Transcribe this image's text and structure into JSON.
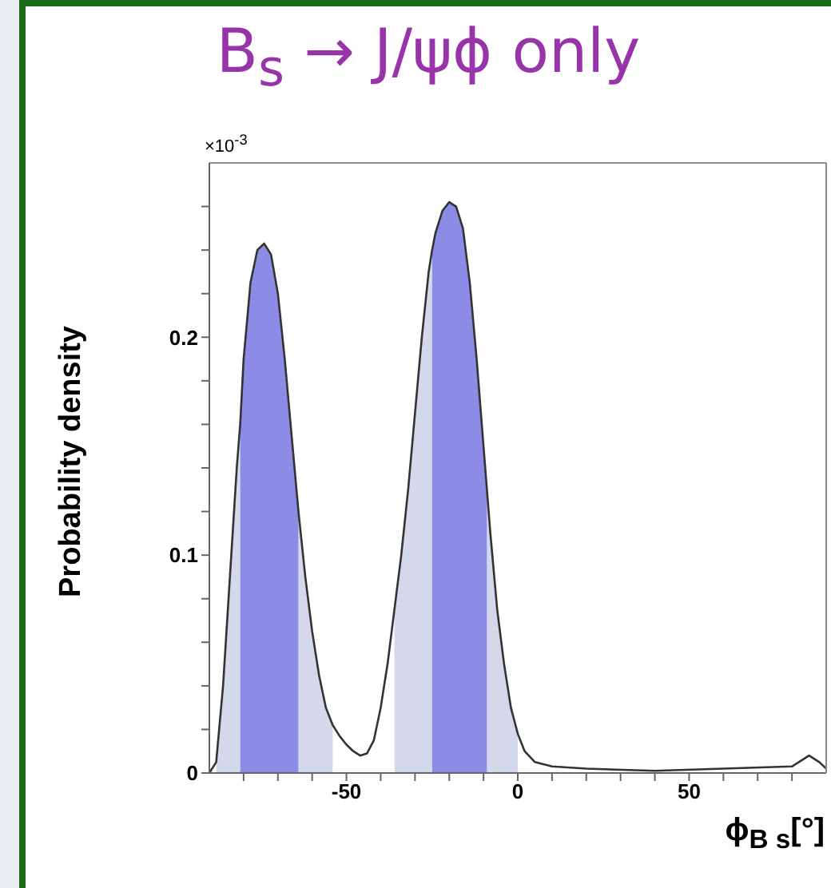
{
  "chart_data": {
    "type": "line",
    "title": "B$_{s}$ → J/ψϕ only",
    "xlabel": "ϕ$_{B s}$[°]",
    "ylabel": "Probability density",
    "annotations": [
      "×10$^{-3}$"
    ],
    "x": [
      -90,
      -88,
      -86,
      -84,
      -82,
      -81,
      -80,
      -78,
      -76,
      -74,
      -72,
      -70,
      -68,
      -66,
      -64,
      -62,
      -60,
      -58,
      -56,
      -54,
      -52,
      -50,
      -48,
      -46,
      -44,
      -42,
      -40,
      -38,
      -36,
      -34,
      -32,
      -30,
      -28,
      -26,
      -25,
      -24,
      -22,
      -20,
      -18,
      -16,
      -14,
      -12,
      -10,
      -9,
      -8,
      -6,
      -4,
      -2,
      0,
      2,
      5,
      10,
      20,
      40,
      60,
      80,
      85,
      88,
      90
    ],
    "series": [
      {
        "type": "area",
        "color": "#d5d8ea",
        "values": [
          null,
          0.005,
          0.04,
          0.09,
          0.14,
          0.16,
          null,
          null,
          null,
          null,
          null,
          null,
          null,
          null,
          0.12,
          0.09,
          0.065,
          0.045,
          0.03,
          0.022,
          null,
          null,
          null,
          null,
          null,
          null,
          null,
          null,
          0.075,
          0.1,
          0.13,
          0.165,
          0.2,
          0.23,
          0.24,
          null,
          null,
          null,
          null,
          null,
          null,
          null,
          null,
          0.13,
          0.11,
          0.075,
          0.05,
          0.03,
          0.018,
          null,
          null,
          null,
          null,
          null,
          null,
          null,
          null,
          null,
          null
        ]
      },
      {
        "type": "area",
        "color": "#8c8ce6",
        "values": [
          null,
          null,
          null,
          null,
          null,
          0.16,
          0.19,
          0.225,
          0.24,
          0.243,
          0.238,
          0.22,
          0.19,
          0.155,
          0.12,
          null,
          null,
          null,
          null,
          null,
          null,
          null,
          null,
          null,
          null,
          null,
          null,
          null,
          null,
          null,
          null,
          null,
          null,
          null,
          0.24,
          0.248,
          0.258,
          0.262,
          0.26,
          0.25,
          0.225,
          0.19,
          0.15,
          0.13,
          null,
          null,
          null,
          null,
          null,
          null,
          null,
          null,
          null,
          null,
          null,
          null,
          null,
          null,
          null
        ]
      },
      {
        "color": "#333333",
        "values": [
          0,
          0.005,
          0.04,
          0.09,
          0.14,
          0.16,
          0.19,
          0.225,
          0.24,
          0.243,
          0.238,
          0.22,
          0.19,
          0.155,
          0.12,
          0.09,
          0.065,
          0.045,
          0.03,
          0.022,
          0.017,
          0.013,
          0.01,
          0.008,
          0.009,
          0.015,
          0.03,
          0.05,
          0.075,
          0.1,
          0.13,
          0.165,
          0.2,
          0.23,
          0.24,
          0.248,
          0.258,
          0.262,
          0.26,
          0.25,
          0.225,
          0.19,
          0.15,
          0.13,
          0.11,
          0.075,
          0.05,
          0.03,
          0.018,
          0.01,
          0.005,
          0.003,
          0.002,
          0.001,
          0.002,
          0.003,
          0.008,
          0.005,
          0.002
        ]
      }
    ],
    "xlim": [
      -90,
      90
    ],
    "xticks": [
      {
        "value": -80,
        "label": null
      },
      {
        "value": -70,
        "label": null
      },
      {
        "value": -60,
        "label": null
      },
      -50,
      {
        "value": -40,
        "label": null
      },
      {
        "value": -30,
        "label": null
      },
      {
        "value": -20,
        "label": null
      },
      {
        "value": -10,
        "label": null
      },
      0,
      {
        "value": 10,
        "label": null
      },
      {
        "value": 20,
        "label": null
      },
      {
        "value": 30,
        "label": null
      },
      {
        "value": 40,
        "label": null
      },
      50,
      {
        "value": 60,
        "label": null
      },
      {
        "value": 70,
        "label": null
      },
      {
        "value": 80,
        "label": null
      }
    ],
    "ylim": [
      0,
      0.28
    ],
    "yticks": [
      0,
      {
        "value": 0.02,
        "label": null
      },
      {
        "value": 0.04,
        "label": null
      },
      {
        "value": 0.06,
        "label": null
      },
      {
        "value": 0.08,
        "label": null
      },
      0.1,
      {
        "value": 0.12,
        "label": null
      },
      {
        "value": 0.14,
        "label": null
      },
      {
        "value": 0.16,
        "label": null
      },
      {
        "value": 0.18,
        "label": null
      },
      0.2,
      {
        "value": 0.22,
        "label": null
      },
      {
        "value": 0.24,
        "label": null
      },
      {
        "value": 0.26,
        "label": null
      }
    ],
    "grid": false,
    "legend": false,
    "marker": "none",
    "line_style": "solid"
  }
}
